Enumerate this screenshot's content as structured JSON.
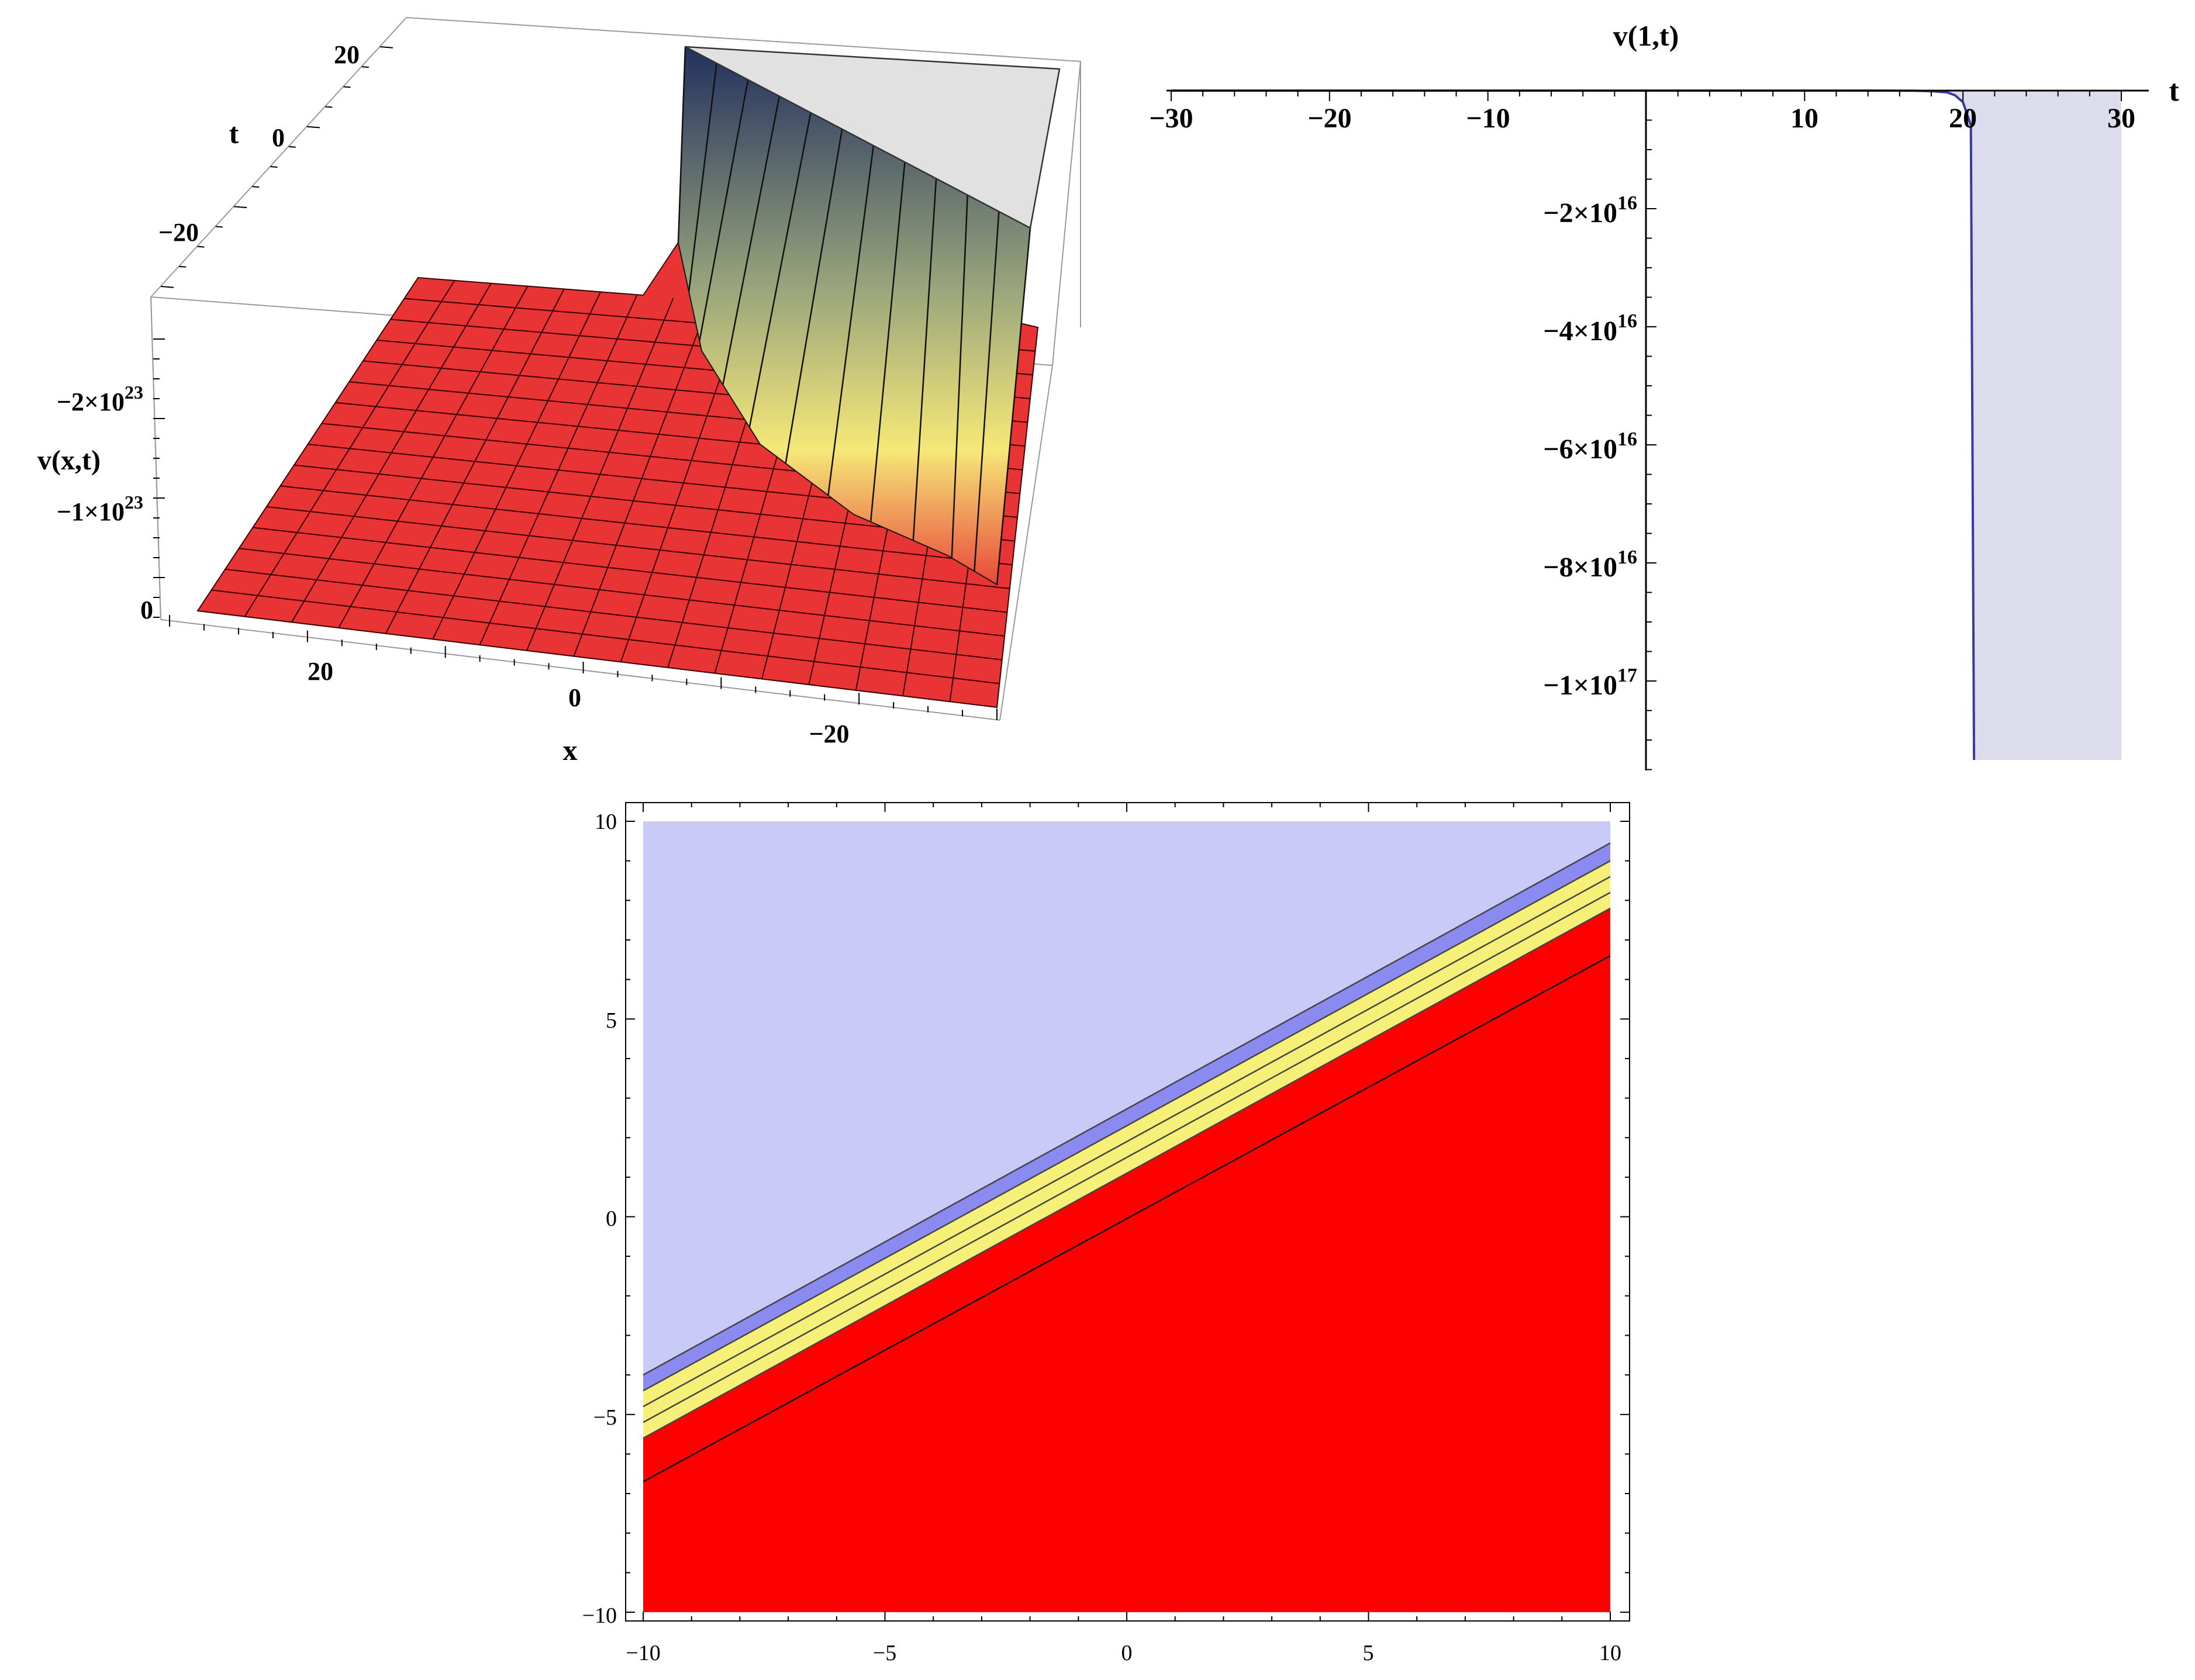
{
  "chart_data": [
    {
      "type": "surface3d",
      "zlabel": "v(x,t)",
      "xlabel": "x",
      "ylabel": "t",
      "x_ticks": [
        "20",
        "0",
        "−20"
      ],
      "t_ticks": [
        "20",
        "0",
        "−20"
      ],
      "z_ticks": [
        {
          "mantissa": "−2×10",
          "exp": "23"
        },
        {
          "mantissa": "−1×10",
          "exp": "23"
        },
        {
          "mantissa": "0",
          "exp": ""
        }
      ],
      "x_range": [
        -30,
        30
      ],
      "t_range": [
        -30,
        30
      ],
      "colors": {
        "flat": "#e83434",
        "mid": "#f6e878",
        "deep": "#22305e",
        "cap": "#e1e1e1"
      }
    },
    {
      "type": "area",
      "title": "v(1,t)",
      "xlabel": "t",
      "ylabel": "",
      "x_ticks": [
        "−30",
        "−20",
        "−10",
        "10",
        "20",
        "30"
      ],
      "y_ticks": [
        {
          "mantissa": "−2×10",
          "exp": "16"
        },
        {
          "mantissa": "−4×10",
          "exp": "16"
        },
        {
          "mantissa": "−6×10",
          "exp": "16"
        },
        {
          "mantissa": "−8×10",
          "exp": "16"
        },
        {
          "mantissa": "−1×10",
          "exp": "17"
        }
      ],
      "xlim": [
        -30,
        30
      ],
      "ylim": [
        -1.15e+17,
        0
      ],
      "series": [
        {
          "x": [
            -30,
            10,
            15,
            17,
            18,
            19,
            19.5,
            20,
            20.5,
            21,
            22,
            25,
            30
          ],
          "y": [
            0,
            0,
            0,
            -20000000000000.0,
            -100000000000000.0,
            -300000000000000.0,
            -800000000000000.0,
            -2000000000000000.0,
            -6000000000000000.0,
            -2e+16,
            -1e+17,
            -1.15e+17,
            -1.15e+17
          ]
        }
      ],
      "colors": {
        "line": "#3a3a9e",
        "fill": "#dcdcec"
      }
    },
    {
      "type": "contour",
      "xlabel": "",
      "ylabel": "",
      "x_ticks": [
        "−10",
        "−5",
        "0",
        "5",
        "10"
      ],
      "y_ticks": [
        "10",
        "5",
        "0",
        "−5",
        "−10"
      ],
      "xlim": [
        -10,
        10
      ],
      "ylim": [
        -10,
        10
      ],
      "contour_lines": [
        {
          "at_x_-10": -4.0,
          "at_x_10": 9.45
        },
        {
          "at_x_-10": -4.4,
          "at_x_10": 9.0
        },
        {
          "at_x_-10": -4.8,
          "at_x_10": 8.6
        },
        {
          "at_x_-10": -5.2,
          "at_x_10": 8.2
        },
        {
          "at_x_-10": -5.6,
          "at_x_10": 7.8
        },
        {
          "at_x_-10": -6.7,
          "at_x_10": 6.6
        }
      ],
      "colors": {
        "top": "#cacaf8",
        "band": "#8a8af0",
        "yellow": "#f6f078",
        "bottom": "#ff0000"
      }
    }
  ]
}
